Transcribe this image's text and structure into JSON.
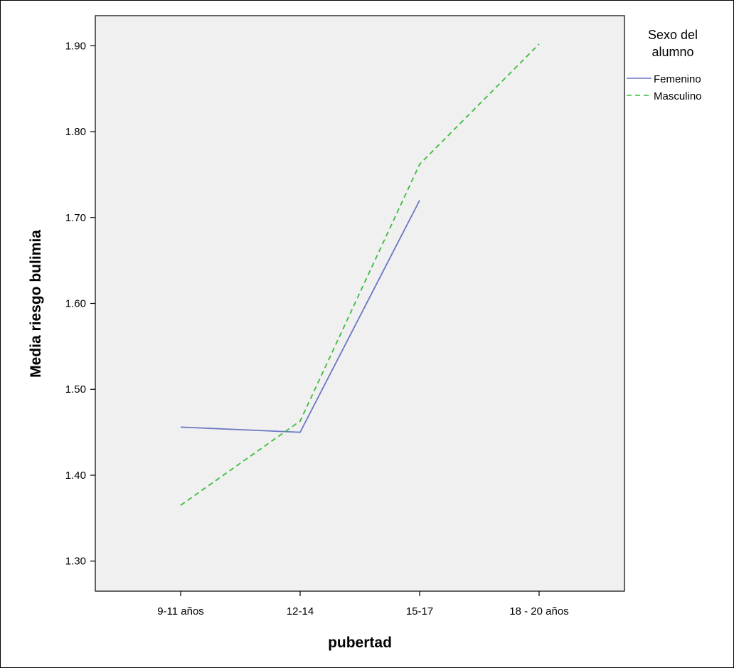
{
  "chart_data": {
    "type": "line",
    "xlabel": "pubertad",
    "ylabel": "Media riesgo bulimia",
    "categories": [
      "9-11 años",
      "12-14",
      "15-17",
      "18 - 20 años"
    ],
    "y_ticks": [
      "1.30",
      "1.40",
      "1.50",
      "1.60",
      "1.70",
      "1.80",
      "1.90"
    ],
    "ylim": [
      1.265,
      1.935
    ],
    "grid": false,
    "legend": {
      "title_lines": [
        "Sexo del",
        "alumno"
      ],
      "placement": "right"
    },
    "series": [
      {
        "name": "Femenino",
        "color": "#6a76c2",
        "style": "solid",
        "values": [
          1.456,
          1.45,
          1.72,
          null
        ]
      },
      {
        "name": "Masculino",
        "color": "#3dbb3d",
        "style": "dashed",
        "values": [
          1.365,
          1.463,
          1.762,
          1.902
        ]
      }
    ],
    "plot_background": "#f0f0f0"
  }
}
